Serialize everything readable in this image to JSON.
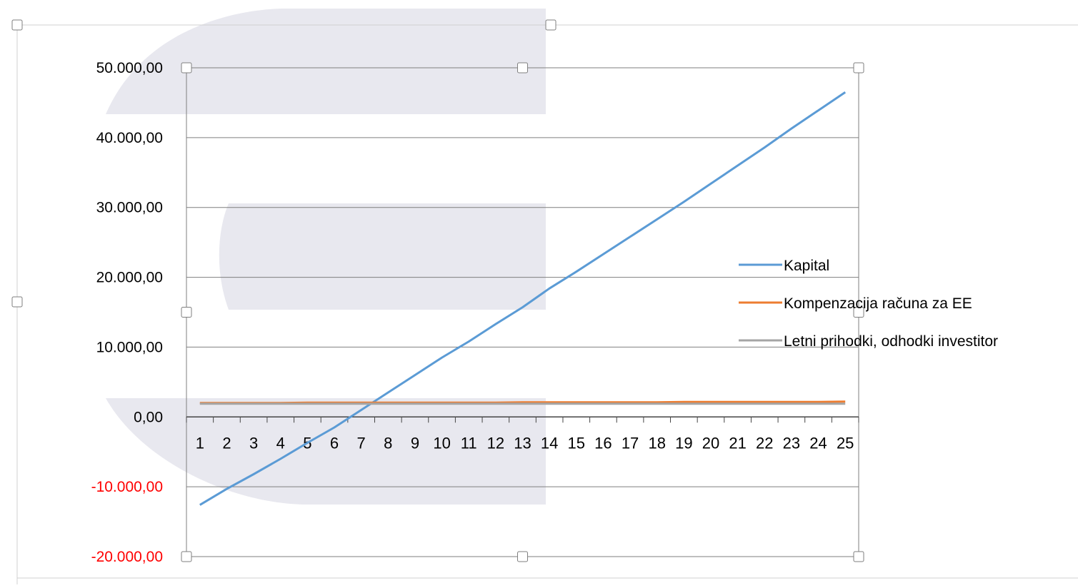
{
  "chart_data": {
    "type": "line",
    "title": "",
    "xlabel": "",
    "ylabel": "",
    "categories": [
      "1",
      "2",
      "3",
      "4",
      "5",
      "6",
      "7",
      "8",
      "9",
      "10",
      "11",
      "12",
      "13",
      "14",
      "15",
      "16",
      "17",
      "18",
      "19",
      "20",
      "21",
      "22",
      "23",
      "24",
      "25"
    ],
    "ylim": [
      -20000,
      50000
    ],
    "yticks": [
      {
        "value": 50000,
        "label": "50.000,00"
      },
      {
        "value": 40000,
        "label": "40.000,00"
      },
      {
        "value": 30000,
        "label": "30.000,00"
      },
      {
        "value": 20000,
        "label": "20.000,00"
      },
      {
        "value": 10000,
        "label": "10.000,00"
      },
      {
        "value": 0,
        "label": "0,00"
      },
      {
        "value": -10000,
        "label": "-10.000,00"
      },
      {
        "value": -20000,
        "label": "-20.000,00"
      }
    ],
    "negative_tick_color": "#ff0000",
    "grid": true,
    "legend_position": "right",
    "series": [
      {
        "name": "Kapital",
        "color": "#5b9bd5",
        "values": [
          -12600,
          -10300,
          -8200,
          -6000,
          -3700,
          -1500,
          1000,
          3500,
          6000,
          8500,
          10800,
          13300,
          15700,
          18400,
          20800,
          23300,
          25800,
          28300,
          30800,
          33400,
          36000,
          38600,
          41300,
          43900,
          46500
        ]
      },
      {
        "name": "Kompenzacija računa za EE",
        "color": "#ed7d31",
        "values": [
          2000,
          2000,
          2000,
          2000,
          2050,
          2050,
          2050,
          2050,
          2050,
          2050,
          2050,
          2050,
          2100,
          2100,
          2100,
          2100,
          2100,
          2100,
          2150,
          2150,
          2150,
          2150,
          2150,
          2150,
          2200
        ]
      },
      {
        "name": "Letni prihodki, odhodki investitor",
        "color": "#a5a5a5",
        "values": [
          1900,
          1900,
          1900,
          1900,
          1900,
          1900,
          1900,
          1900,
          1900,
          1900,
          1900,
          1900,
          1900,
          1900,
          1900,
          1900,
          1900,
          1900,
          1900,
          1900,
          1900,
          1900,
          1900,
          1900,
          1900
        ]
      }
    ]
  },
  "colors": {
    "gridline": "#7f7f7f",
    "axis_text": "#000000",
    "watermark": "#e8e8ef",
    "selection_handle_border": "#7f7f7f"
  }
}
